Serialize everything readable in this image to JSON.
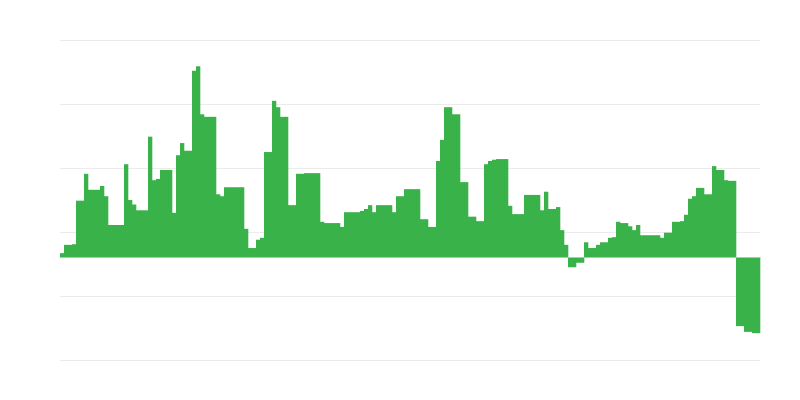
{
  "chart_data": {
    "type": "bar",
    "title": "",
    "xlabel": "",
    "ylabel": "",
    "ylim": [
      -1.61,
      3.39
    ],
    "grid": true,
    "legend": "none",
    "bar_color": "#39b24a",
    "grid_color": "#ebebeb",
    "baseline_color": "#bdbdbd",
    "values": [
      0.06,
      0.19,
      0.19,
      0.2,
      0.88,
      0.88,
      1.3,
      1.05,
      1.05,
      1.05,
      1.11,
      0.95,
      0.5,
      0.5,
      0.5,
      0.5,
      1.45,
      0.89,
      0.82,
      0.73,
      0.73,
      0.73,
      1.88,
      1.2,
      1.22,
      1.36,
      1.36,
      1.36,
      0.69,
      1.59,
      1.78,
      1.66,
      1.66,
      2.91,
      2.98,
      2.23,
      2.19,
      2.19,
      2.19,
      0.98,
      0.95,
      1.09,
      1.09,
      1.09,
      1.09,
      1.09,
      0.44,
      0.14,
      0.14,
      0.27,
      0.3,
      1.64,
      1.64,
      2.44,
      2.34,
      2.19,
      2.19,
      0.81,
      0.81,
      1.3,
      1.3,
      1.31,
      1.31,
      1.31,
      1.31,
      0.55,
      0.53,
      0.53,
      0.53,
      0.53,
      0.47,
      0.7,
      0.7,
      0.7,
      0.7,
      0.72,
      0.75,
      0.81,
      0.7,
      0.81,
      0.81,
      0.81,
      0.81,
      0.7,
      0.95,
      0.95,
      1.06,
      1.06,
      1.06,
      1.06,
      0.59,
      0.59,
      0.47,
      0.47,
      1.5,
      1.83,
      2.34,
      2.34,
      2.23,
      2.23,
      1.17,
      1.17,
      0.63,
      0.63,
      0.56,
      0.56,
      1.45,
      1.5,
      1.52,
      1.53,
      1.53,
      1.53,
      0.8,
      0.67,
      0.67,
      0.67,
      0.97,
      0.97,
      0.97,
      0.97,
      0.73,
      1.02,
      0.75,
      0.75,
      0.78,
      0.42,
      0.19,
      -0.16,
      -0.16,
      -0.09,
      -0.09,
      0.23,
      0.14,
      0.14,
      0.19,
      0.23,
      0.23,
      0.3,
      0.31,
      0.55,
      0.53,
      0.53,
      0.48,
      0.42,
      0.5,
      0.34,
      0.34,
      0.34,
      0.34,
      0.34,
      0.3,
      0.38,
      0.38,
      0.55,
      0.55,
      0.56,
      0.66,
      0.91,
      0.95,
      1.08,
      1.08,
      0.98,
      0.98,
      1.42,
      1.36,
      1.36,
      1.2,
      1.19,
      1.19,
      -1.08,
      -1.08,
      -1.17,
      -1.17,
      -1.19,
      -1.19
    ]
  }
}
